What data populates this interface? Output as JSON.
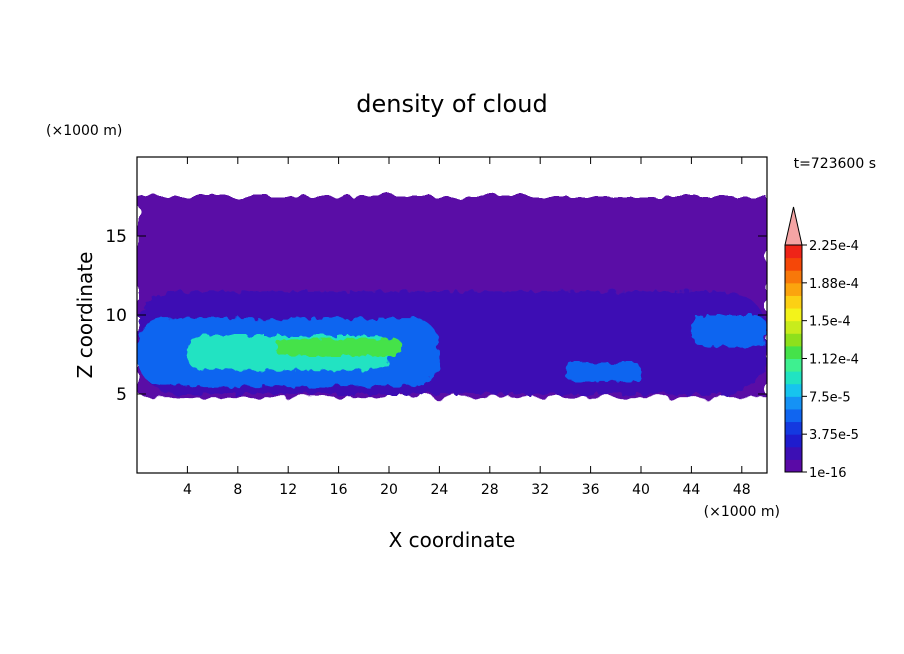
{
  "chart_data": {
    "type": "heatmap",
    "title": "density of cloud",
    "xlabel": "X coordinate",
    "ylabel": "Z coordinate",
    "x_unit": "(×1000 m)",
    "y_unit": "(×1000 m)",
    "time_label": "t=723600 s",
    "xlim": [
      0,
      50
    ],
    "ylim": [
      0,
      20
    ],
    "x_ticks": [
      4,
      8,
      12,
      16,
      20,
      24,
      28,
      32,
      36,
      40,
      44,
      48
    ],
    "y_ticks": [
      5,
      10,
      15
    ],
    "colorbar": {
      "levels": [
        "1e-16",
        "3.75e-5",
        "7.5e-5",
        "1.12e-4",
        "1.5e-4",
        "1.88e-4",
        "2.25e-4"
      ],
      "colors": [
        "#5a0aa6",
        "#3c0fb4",
        "#1f1ccd",
        "#1439e0",
        "#1065f0",
        "#1592f5",
        "#17c4ee",
        "#21e3c2",
        "#3ef090",
        "#45e24a",
        "#8ee01c",
        "#c8ec1c",
        "#f3f31a",
        "#fcd014",
        "#fba40e",
        "#f8780a",
        "#f54708",
        "#ef2418",
        "#f4a4a4"
      ]
    },
    "field_regions": [
      {
        "level": 0,
        "description": "cloud layer",
        "x_range": [
          0,
          50
        ],
        "z_range": [
          4.8,
          17.5
        ]
      },
      {
        "level": 1,
        "x_range": [
          0,
          50
        ],
        "z_range": [
          5,
          11.5
        ]
      },
      {
        "level": 4,
        "x_range": [
          0,
          24
        ],
        "z_range": [
          5.5,
          9.8
        ]
      },
      {
        "level": 7,
        "x_range": [
          4,
          20
        ],
        "z_range": [
          6.5,
          8.7
        ]
      },
      {
        "level": 9,
        "x_range": [
          11,
          21
        ],
        "z_range": [
          7.4,
          8.5
        ]
      },
      {
        "level": 4,
        "x_range": [
          34,
          40
        ],
        "z_range": [
          5.8,
          7.0
        ]
      },
      {
        "level": 4,
        "x_range": [
          44,
          50
        ],
        "z_range": [
          8.0,
          10.0
        ]
      }
    ]
  }
}
